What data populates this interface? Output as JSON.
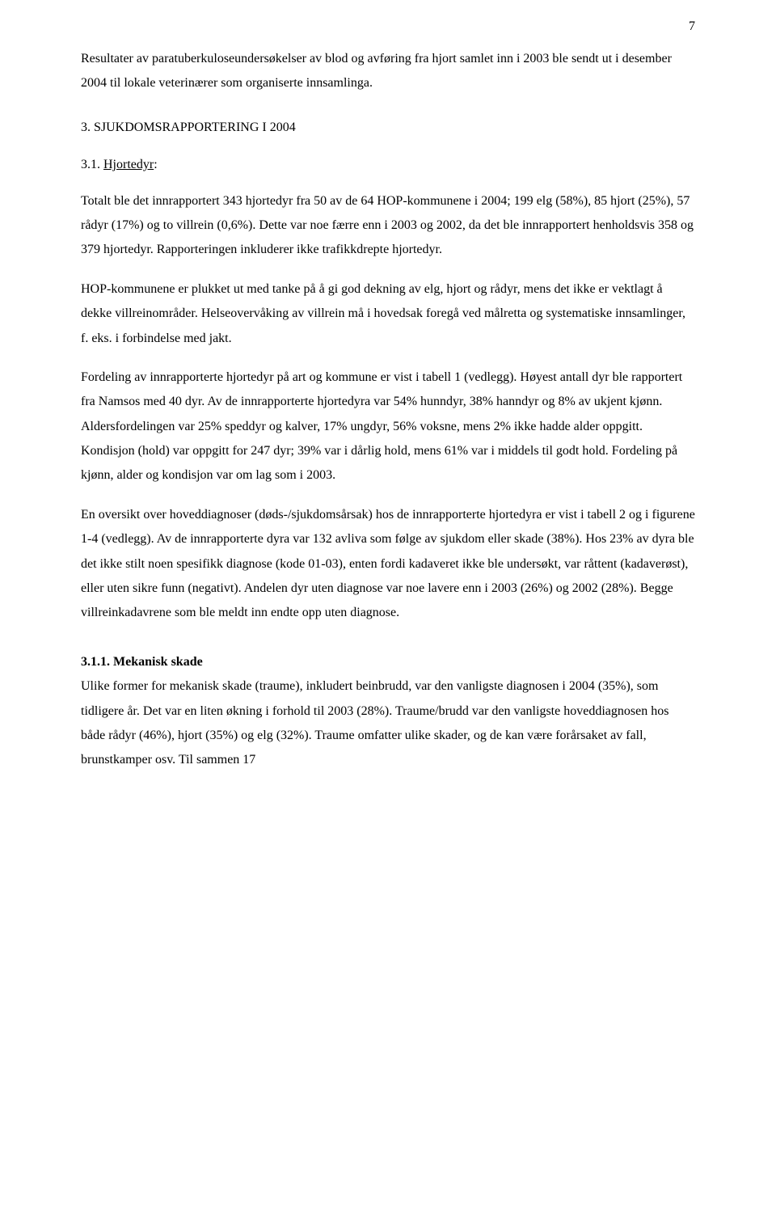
{
  "page_number": "7",
  "intro_paragraph": "Resultater av paratuberkuloseundersøkelser av blod og avføring fra hjort samlet inn i 2003 ble sendt ut i desember 2004 til lokale veterinærer som organiserte innsamlinga.",
  "heading_main": "3. SJUKDOMSRAPPORTERING I 2004",
  "heading_sub_prefix": "3.1. ",
  "heading_sub_label": "Hjortedyr",
  "heading_sub_colon": ":",
  "para1": "Totalt ble det innrapportert 343 hjortedyr fra 50 av de 64 HOP-kommunene i 2004; 199 elg (58%), 85 hjort (25%), 57 rådyr (17%) og to villrein (0,6%). Dette var noe færre enn i 2003 og 2002, da det ble innrapportert henholdsvis 358 og 379 hjortedyr. Rapporteringen inkluderer ikke trafikkdrepte hjortedyr.",
  "para2": "HOP-kommunene er plukket ut med tanke på å gi god dekning av elg, hjort og rådyr, mens det ikke er vektlagt å dekke villreinområder. Helseovervåking av villrein må i hovedsak foregå ved målretta og systematiske innsamlinger, f. eks. i forbindelse med jakt.",
  "para3": "Fordeling av innrapporterte hjortedyr på art og kommune er vist i tabell 1 (vedlegg). Høyest antall dyr ble rapportert fra Namsos med 40 dyr. Av de innrapporterte hjortedyra var 54% hunndyr, 38% hanndyr og 8% av ukjent kjønn. Aldersfordelingen var 25% speddyr og kalver, 17% ungdyr, 56% voksne, mens 2% ikke hadde alder oppgitt. Kondisjon (hold) var oppgitt for 247 dyr; 39% var i dårlig hold,  mens 61% var i middels til godt hold. Fordeling på kjønn, alder og kondisjon var om lag som i 2003.",
  "para4": "En oversikt over hoveddiagnoser (døds-/sjukdomsårsak) hos de innrapporterte hjortedyra er vist i tabell 2 og i figurene 1-4 (vedlegg). Av de innrapporterte dyra var 132 avliva som følge av sjukdom eller skade (38%). Hos 23% av dyra ble det ikke stilt noen spesifikk diagnose (kode 01-03), enten fordi kadaveret ikke ble undersøkt, var råttent (kadaverøst), eller uten sikre funn (negativt). Andelen dyr uten diagnose var noe lavere enn i 2003 (26%) og 2002 (28%). Begge villreinkadavrene som ble meldt inn endte opp uten diagnose.",
  "heading_subsub": "3.1.1. Mekanisk skade",
  "para5": "Ulike former for mekanisk skade (traume), inkludert beinbrudd, var den vanligste diagnosen i 2004 (35%), som tidligere år. Det var en liten økning i forhold til 2003 (28%). Traume/brudd var den vanligste hoveddiagnosen hos både rådyr (46%), hjort (35%) og elg (32%). Traume omfatter ulike skader, og de kan være forårsaket av fall, brunstkamper osv. Til sammen 17"
}
